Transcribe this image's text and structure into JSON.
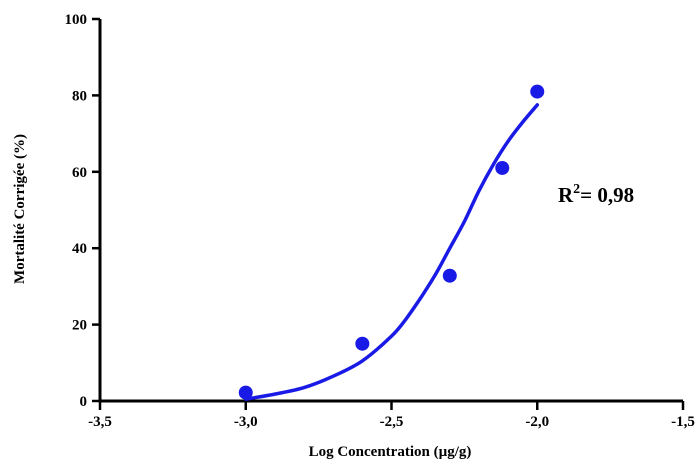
{
  "chart_data": {
    "type": "scatter",
    "title": "",
    "xlabel": "Log Concentration (µg/g)",
    "ylabel": "Mortalité Corrigée (%)",
    "xlim": [
      -3.5,
      -1.5
    ],
    "ylim": [
      0,
      100
    ],
    "x_ticks": [
      -3.5,
      -3.0,
      -2.5,
      -2.0,
      -1.5
    ],
    "x_tick_labels": [
      "-3,5",
      "-3,0",
      "-2,5",
      "-2,0",
      "-1,5"
    ],
    "y_ticks": [
      0,
      20,
      40,
      60,
      80,
      100
    ],
    "y_tick_labels": [
      "0",
      "20",
      "40",
      "60",
      "80",
      "100"
    ],
    "grid": false,
    "series": [
      {
        "color": "#1a1ae6",
        "points": [
          {
            "x": -3.0,
            "y": 2.2
          },
          {
            "x": -2.6,
            "y": 15.0
          },
          {
            "x": -2.3,
            "y": 32.8
          },
          {
            "x": -2.12,
            "y": 61.0
          },
          {
            "x": -2.0,
            "y": 81.0
          }
        ]
      }
    ],
    "fit_curve": {
      "color": "#1a1ae6",
      "x": [
        -3.0,
        -2.9,
        -2.8,
        -2.7,
        -2.6,
        -2.5,
        -2.45,
        -2.4,
        -2.35,
        -2.3,
        -2.25,
        -2.2,
        -2.15,
        -2.1,
        -2.05,
        -2.0
      ],
      "y": [
        0.5,
        1.8,
        3.5,
        6.5,
        10.5,
        17.0,
        21.5,
        27.0,
        33.0,
        40.0,
        47.0,
        55.0,
        62.0,
        68.0,
        73.0,
        77.5
      ]
    },
    "annotation": {
      "base": "R",
      "sup": "2",
      "text": "= 0,98"
    }
  }
}
